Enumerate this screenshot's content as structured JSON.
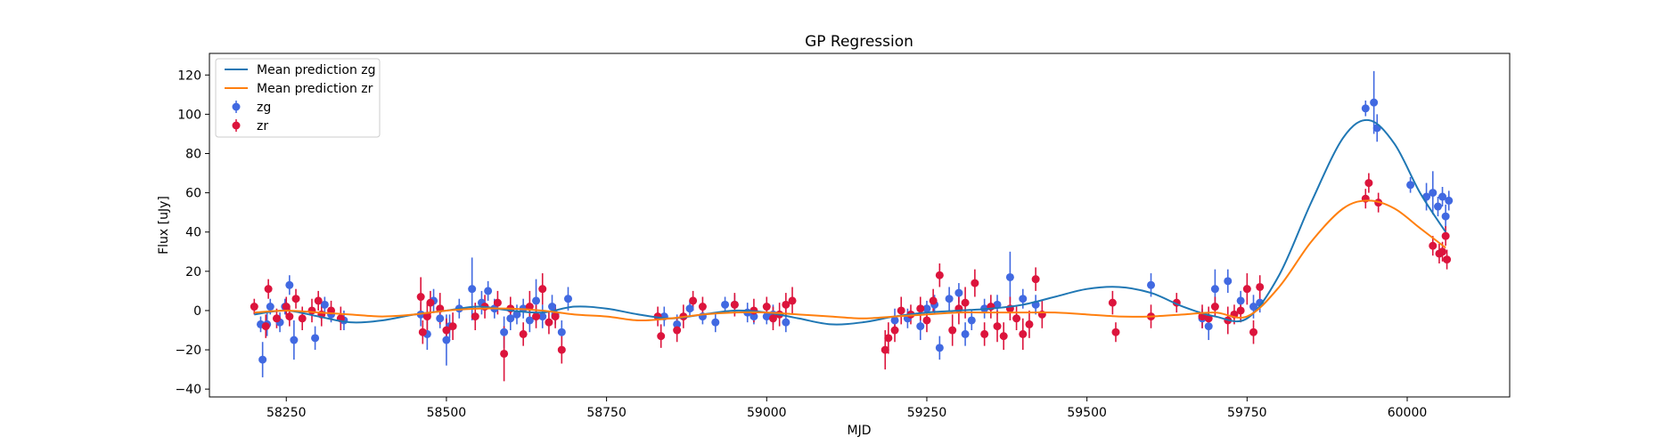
{
  "chart_data": {
    "type": "scatter",
    "title": "GP Regression",
    "xlabel": "MJD",
    "ylabel": "Flux [uJy]",
    "xlim": [
      58130,
      60160
    ],
    "ylim": [
      -44,
      131
    ],
    "xticks": [
      58250,
      58500,
      58750,
      59000,
      59250,
      59500,
      59750,
      60000
    ],
    "yticks": [
      -40,
      -20,
      0,
      20,
      40,
      60,
      80,
      100,
      120
    ],
    "grid": false,
    "legend": {
      "placement": "top-left",
      "entries": [
        "Mean prediction zg",
        "Mean prediction zr",
        "zg",
        "zr"
      ]
    },
    "lines": [
      {
        "name": "Mean prediction zg",
        "color": "#1f77b4",
        "x": [
          58200,
          58250,
          58300,
          58350,
          58400,
          58450,
          58500,
          58550,
          58600,
          58650,
          58700,
          58750,
          58800,
          58850,
          58900,
          58950,
          59000,
          59050,
          59100,
          59150,
          59200,
          59250,
          59300,
          59350,
          59400,
          59450,
          59500,
          59550,
          59600,
          59650,
          59700,
          59750,
          59800,
          59850,
          59900,
          59940,
          59980,
          60020,
          60060
        ],
        "y": [
          -2,
          0,
          -3,
          -6,
          -5,
          -2,
          0,
          2,
          0,
          -1,
          2,
          1,
          -2,
          -4,
          -2,
          0,
          -1,
          -4,
          -7,
          -6,
          -3,
          -1,
          0,
          1,
          3,
          7,
          11,
          12,
          9,
          2,
          -3,
          -4,
          18,
          55,
          88,
          97,
          85,
          60,
          40
        ]
      },
      {
        "name": "Mean prediction zr",
        "color": "#ff7f0e",
        "x": [
          58200,
          58250,
          58300,
          58350,
          58400,
          58450,
          58500,
          58550,
          58600,
          58650,
          58700,
          58750,
          58800,
          58850,
          58900,
          58950,
          59000,
          59050,
          59100,
          59150,
          59200,
          59250,
          59300,
          59350,
          59400,
          59450,
          59500,
          59550,
          59600,
          59650,
          59700,
          59750,
          59800,
          59850,
          59900,
          59940,
          59980,
          60020,
          60060
        ],
        "y": [
          -1,
          0,
          -1,
          -2,
          -3,
          -2,
          0,
          1,
          1,
          0,
          -2,
          -3,
          -5,
          -4,
          -2,
          -1,
          -1,
          -2,
          -3,
          -4,
          -3,
          -2,
          -1,
          -1,
          -1,
          -1,
          -2,
          -3,
          -3,
          -2,
          -1,
          -3,
          12,
          35,
          52,
          56,
          52,
          42,
          32
        ]
      }
    ],
    "series": [
      {
        "name": "zg",
        "color": "#4169e1",
        "x": [
          58210,
          58213,
          58220,
          58225,
          58240,
          58248,
          58255,
          58262,
          58295,
          58310,
          58320,
          58340,
          58460,
          58470,
          58480,
          58490,
          58500,
          58505,
          58520,
          58540,
          58555,
          58565,
          58575,
          58590,
          58600,
          58610,
          58620,
          58630,
          58640,
          58650,
          58665,
          58670,
          58680,
          58690,
          58840,
          58860,
          58880,
          58900,
          58920,
          58935,
          58950,
          58970,
          58980,
          59000,
          59010,
          59030,
          59200,
          59220,
          59240,
          59250,
          59262,
          59270,
          59285,
          59300,
          59310,
          59320,
          59340,
          59360,
          59380,
          59400,
          59420,
          59600,
          59680,
          59690,
          59700,
          59720,
          59740,
          59760,
          59770,
          59935,
          59948,
          59953,
          60005,
          60030,
          60040,
          60048,
          60055,
          60060,
          60065
        ],
        "y": [
          -7,
          -25,
          -7,
          2,
          -6,
          2,
          13,
          -15,
          -14,
          3,
          -2,
          -5,
          -2,
          -12,
          5,
          -4,
          -15,
          -8,
          1,
          11,
          4,
          10,
          1,
          -11,
          -4,
          -2,
          1,
          -5,
          5,
          -3,
          2,
          -2,
          -11,
          6,
          -3,
          -7,
          1,
          -3,
          -6,
          3,
          3,
          -1,
          -3,
          -3,
          -2,
          -6,
          -5,
          -4,
          -8,
          1,
          3,
          -19,
          6,
          9,
          -12,
          -5,
          1,
          3,
          17,
          6,
          3,
          13,
          -4,
          -8,
          11,
          15,
          5,
          2,
          4,
          103,
          106,
          93,
          64,
          58,
          60,
          53,
          58,
          48,
          56
        ],
        "err": [
          4,
          9,
          6,
          4,
          5,
          4,
          5,
          10,
          6,
          4,
          4,
          5,
          6,
          8,
          6,
          5,
          13,
          6,
          5,
          16,
          6,
          5,
          5,
          8,
          6,
          5,
          5,
          6,
          11,
          6,
          6,
          5,
          6,
          6,
          5,
          5,
          4,
          4,
          5,
          4,
          5,
          5,
          4,
          4,
          5,
          5,
          6,
          5,
          7,
          4,
          5,
          6,
          6,
          5,
          6,
          5,
          5,
          5,
          13,
          5,
          5,
          6,
          5,
          7,
          10,
          6,
          5,
          6,
          5,
          4,
          16,
          7,
          4,
          7,
          11,
          5,
          5,
          6,
          5
        ]
      },
      {
        "name": "zr",
        "color": "#dc143c",
        "x": [
          58200,
          58218,
          58222,
          58235,
          58250,
          58255,
          58265,
          58275,
          58290,
          58300,
          58305,
          58320,
          58335,
          58460,
          58463,
          58470,
          58475,
          58490,
          58500,
          58510,
          58545,
          58560,
          58580,
          58590,
          58600,
          58620,
          58630,
          58640,
          58650,
          58660,
          58670,
          58680,
          58830,
          58835,
          58860,
          58870,
          58885,
          58900,
          58950,
          58980,
          59000,
          59010,
          59020,
          59030,
          59040,
          59185,
          59190,
          59200,
          59210,
          59225,
          59240,
          59250,
          59260,
          59270,
          59290,
          59300,
          59310,
          59325,
          59340,
          59350,
          59360,
          59370,
          59380,
          59390,
          59400,
          59410,
          59420,
          59430,
          59540,
          59545,
          59600,
          59640,
          59680,
          59690,
          59700,
          59720,
          59730,
          59740,
          59750,
          59760,
          59770,
          59935,
          59940,
          59955,
          60040,
          60050,
          60055,
          60060,
          60062
        ],
        "y": [
          2,
          -8,
          11,
          -4,
          2,
          -3,
          6,
          -4,
          0,
          5,
          -2,
          0,
          -4,
          7,
          -11,
          -3,
          4,
          1,
          -10,
          -8,
          -3,
          2,
          4,
          -22,
          1,
          -12,
          2,
          -3,
          11,
          -6,
          -3,
          -20,
          -3,
          -13,
          -10,
          -3,
          5,
          2,
          3,
          0,
          2,
          -4,
          -2,
          3,
          5,
          -20,
          -14,
          -10,
          0,
          -2,
          1,
          -5,
          5,
          18,
          -10,
          1,
          4,
          14,
          -12,
          2,
          -8,
          -13,
          1,
          -4,
          -12,
          -7,
          16,
          -2,
          4,
          -11,
          -3,
          4,
          -3,
          -4,
          2,
          -5,
          -2,
          0,
          11,
          -11,
          12,
          57,
          65,
          55,
          33,
          29,
          30,
          38,
          26
        ],
        "err": [
          4,
          6,
          5,
          5,
          5,
          5,
          5,
          6,
          6,
          5,
          6,
          5,
          6,
          10,
          6,
          7,
          6,
          8,
          6,
          7,
          7,
          6,
          6,
          14,
          6,
          6,
          8,
          6,
          8,
          6,
          6,
          7,
          5,
          6,
          6,
          6,
          5,
          5,
          6,
          6,
          5,
          6,
          6,
          6,
          7,
          10,
          8,
          6,
          7,
          5,
          6,
          6,
          6,
          6,
          8,
          8,
          8,
          7,
          6,
          6,
          8,
          7,
          6,
          6,
          8,
          7,
          6,
          7,
          6,
          5,
          6,
          5,
          6,
          6,
          5,
          7,
          5,
          6,
          8,
          6,
          6,
          5,
          5,
          5,
          5,
          5,
          5,
          5,
          5
        ]
      }
    ]
  }
}
